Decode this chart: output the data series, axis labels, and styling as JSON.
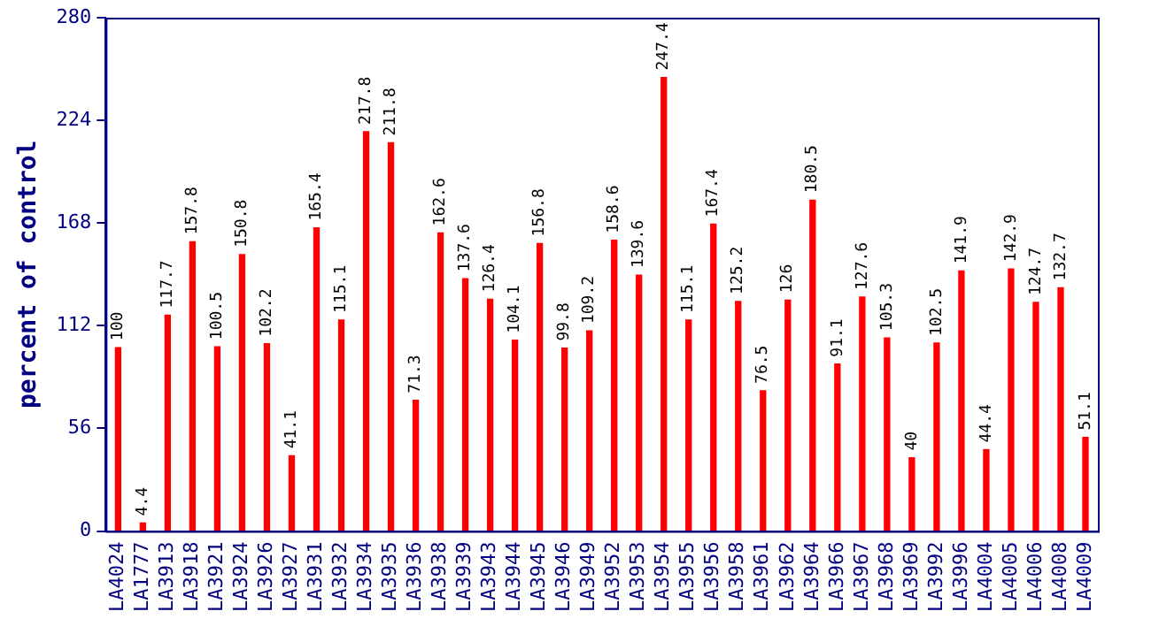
{
  "chart_data": {
    "type": "bar",
    "ylabel": "percent of control",
    "categories": [
      "LA4024",
      "LA1777",
      "LA3913",
      "LA3918",
      "LA3921",
      "LA3924",
      "LA3926",
      "LA3927",
      "LA3931",
      "LA3932",
      "LA3934",
      "LA3935",
      "LA3936",
      "LA3938",
      "LA3939",
      "LA3943",
      "LA3944",
      "LA3945",
      "LA3946",
      "LA3949",
      "LA3952",
      "LA3953",
      "LA3954",
      "LA3955",
      "LA3956",
      "LA3958",
      "LA3961",
      "LA3962",
      "LA3964",
      "LA3966",
      "LA3967",
      "LA3968",
      "LA3969",
      "LA3992",
      "LA3996",
      "LA4004",
      "LA4005",
      "LA4006",
      "LA4008",
      "LA4009"
    ],
    "values": [
      100,
      4.4,
      117.7,
      157.8,
      100.5,
      150.8,
      102.2,
      41.1,
      165.4,
      115.1,
      217.8,
      211.8,
      71.3,
      162.6,
      137.6,
      126.4,
      104.1,
      156.8,
      99.8,
      109.2,
      158.6,
      139.6,
      247.4,
      115.1,
      167.4,
      125.2,
      76.5,
      126,
      180.5,
      91.1,
      127.6,
      105.3,
      40,
      102.5,
      141.9,
      44.4,
      142.9,
      124.7,
      132.7,
      51.1
    ],
    "color": "#ff0000",
    "ylim": [
      0,
      280
    ],
    "yticks": [
      0,
      56,
      112,
      168,
      224,
      280
    ],
    "grid": false,
    "legend": false,
    "data_labels": true
  }
}
